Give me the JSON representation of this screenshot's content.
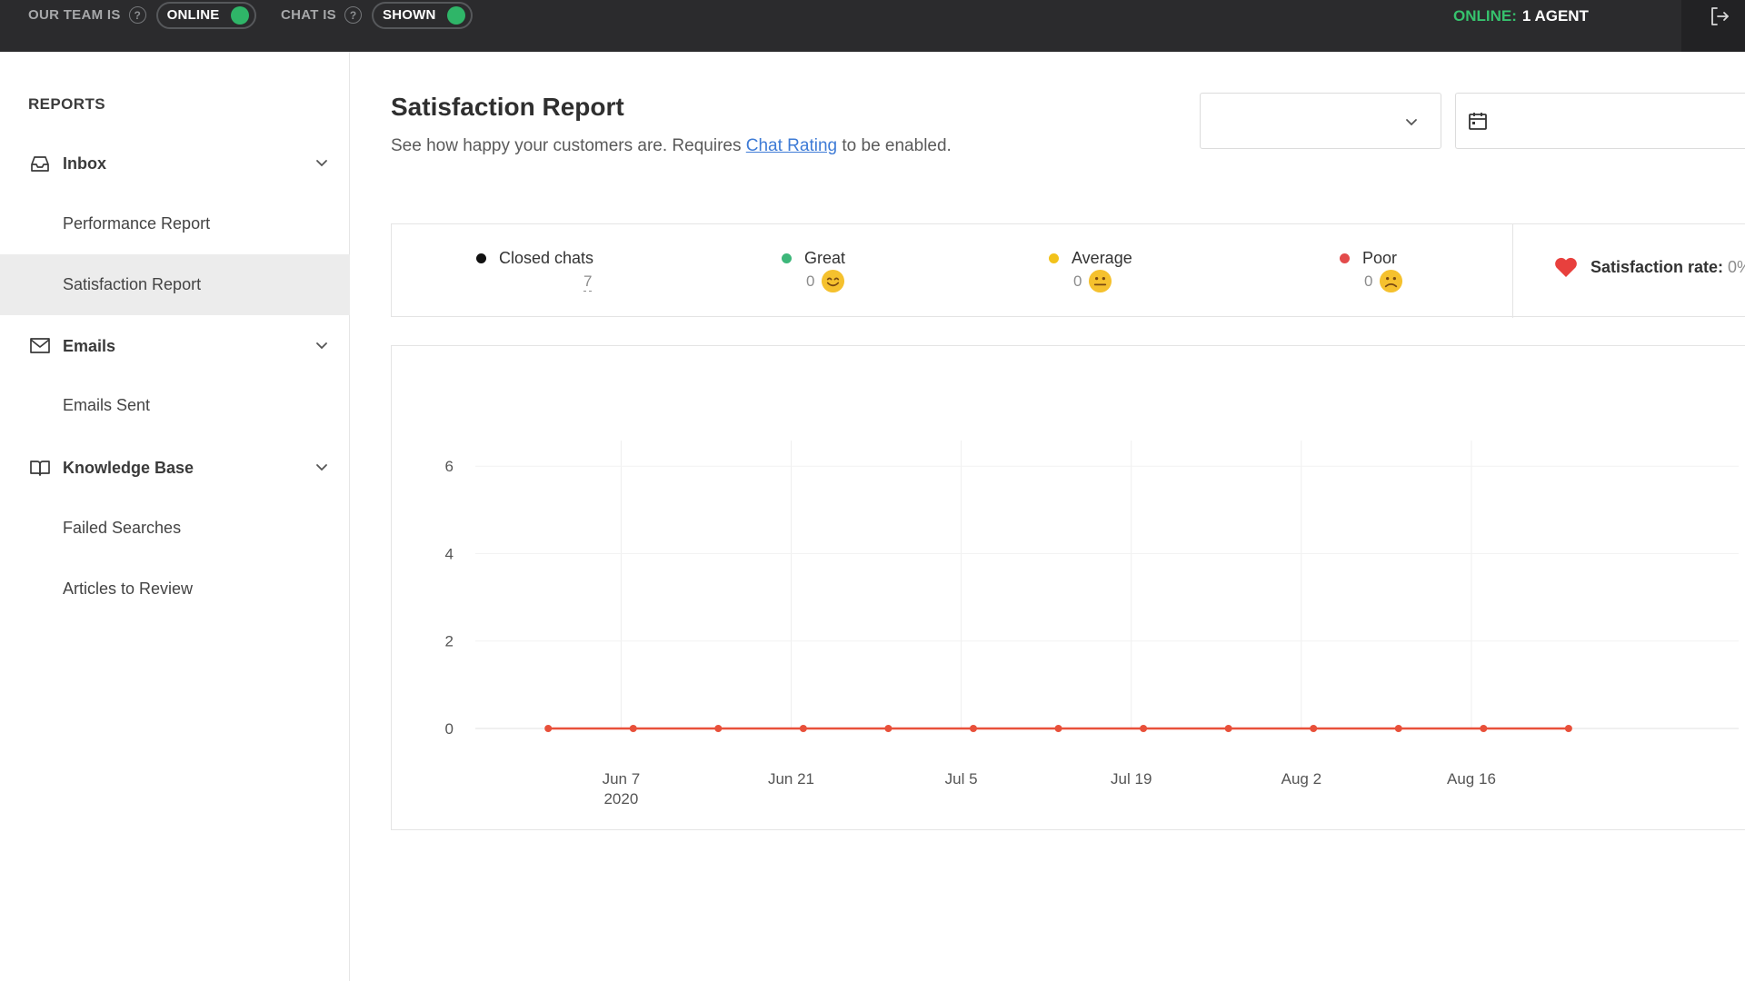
{
  "topbar": {
    "team_label": "OUR TEAM IS",
    "team_status": "ONLINE",
    "chat_label": "CHAT IS",
    "chat_status": "SHOWN",
    "online_label": "ONLINE:",
    "online_value": "1 AGENT",
    "help_glyph": "?",
    "toggle_on_color": "#2fb568",
    "icons": [
      "help-icon",
      "logout-icon"
    ]
  },
  "sidebar": {
    "title": "REPORTS",
    "sections": [
      {
        "label": "Inbox",
        "icon": "inbox-icon",
        "items": [
          "Performance Report",
          "Satisfaction Report"
        ]
      },
      {
        "label": "Emails",
        "icon": "mail-icon",
        "items": [
          "Emails Sent"
        ]
      },
      {
        "label": "Knowledge Base",
        "icon": "book-icon",
        "items": [
          "Failed Searches",
          "Articles to Review"
        ]
      }
    ],
    "active_item": "Satisfaction Report"
  },
  "header": {
    "title": "Satisfaction Report",
    "subtitle_pre": "See how happy your customers are. Requires ",
    "subtitle_link": "Chat Rating",
    "subtitle_post": " to be enabled.",
    "link_color": "#3e7bd6",
    "select_value": "",
    "date_value": ""
  },
  "summary": {
    "closed_chats": {
      "label": "Closed chats",
      "value": "7",
      "color": "#111111"
    },
    "great": {
      "label": "Great",
      "value": "0",
      "color": "#3db77a",
      "icon": "smile-emoji-icon"
    },
    "average": {
      "label": "Average",
      "value": "0",
      "color": "#f2c21b",
      "icon": "neutral-emoji-icon"
    },
    "poor": {
      "label": "Poor",
      "value": "0",
      "color": "#e34b4b",
      "icon": "sad-emoji-icon"
    },
    "satisfaction_rate": {
      "label": "Satisfaction rate:",
      "value": "0%",
      "icon": "heart-icon",
      "color": "#e8403d"
    }
  },
  "chart_data": {
    "type": "line",
    "title": "",
    "xlabel": "",
    "ylabel": "",
    "ylim": [
      0,
      7.5
    ],
    "y_ticks": [
      0,
      2,
      4,
      6
    ],
    "x_ticks": [
      {
        "date": "2020-06-07",
        "label": "Jun 7",
        "sublabel": "2020"
      },
      {
        "date": "2020-06-21",
        "label": "Jun 21",
        "sublabel": ""
      },
      {
        "date": "2020-07-05",
        "label": "Jul 5",
        "sublabel": ""
      },
      {
        "date": "2020-07-19",
        "label": "Jul 19",
        "sublabel": ""
      },
      {
        "date": "2020-08-02",
        "label": "Aug 2",
        "sublabel": ""
      },
      {
        "date": "2020-08-16",
        "label": "Aug 16",
        "sublabel": ""
      }
    ],
    "xlim": [
      "2020-05-26",
      "2020-09-07"
    ],
    "grid": true,
    "series": [
      {
        "color": "#e8503a",
        "points": [
          {
            "x": "2020-06-01",
            "y": 0
          },
          {
            "x": "2020-06-08",
            "y": 0
          },
          {
            "x": "2020-06-15",
            "y": 0
          },
          {
            "x": "2020-06-22",
            "y": 0
          },
          {
            "x": "2020-06-29",
            "y": 0
          },
          {
            "x": "2020-07-06",
            "y": 0
          },
          {
            "x": "2020-07-13",
            "y": 0
          },
          {
            "x": "2020-07-20",
            "y": 0
          },
          {
            "x": "2020-07-27",
            "y": 0
          },
          {
            "x": "2020-08-03",
            "y": 0
          },
          {
            "x": "2020-08-10",
            "y": 0
          },
          {
            "x": "2020-08-17",
            "y": 0
          },
          {
            "x": "2020-08-24",
            "y": 0
          }
        ]
      }
    ]
  }
}
